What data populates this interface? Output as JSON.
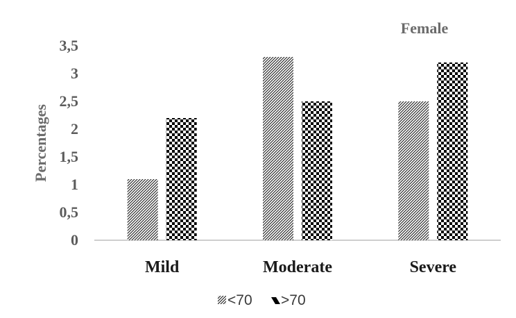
{
  "chart_data": {
    "type": "bar",
    "title": "Female",
    "xlabel": "",
    "ylabel": "Percentages",
    "categories": [
      "Mild",
      "Moderate",
      "Severe"
    ],
    "series": [
      {
        "name": "<70",
        "values": [
          1.1,
          3.3,
          2.5
        ],
        "pattern": "diagonal-stripes"
      },
      {
        "name": ">70",
        "values": [
          2.2,
          2.5,
          3.2
        ],
        "pattern": "checkerboard"
      }
    ],
    "yticks": [
      "0",
      "0,5",
      "1",
      "1,5",
      "2",
      "2,5",
      "3",
      "3,5"
    ],
    "ylim": [
      0,
      3.5
    ],
    "grid": false,
    "legend_position": "bottom",
    "colors": {
      "bar_dark": "#000000",
      "bar_light": "#ffffff",
      "axis": "#bdbdbd",
      "title": "#6b6b6b"
    }
  }
}
